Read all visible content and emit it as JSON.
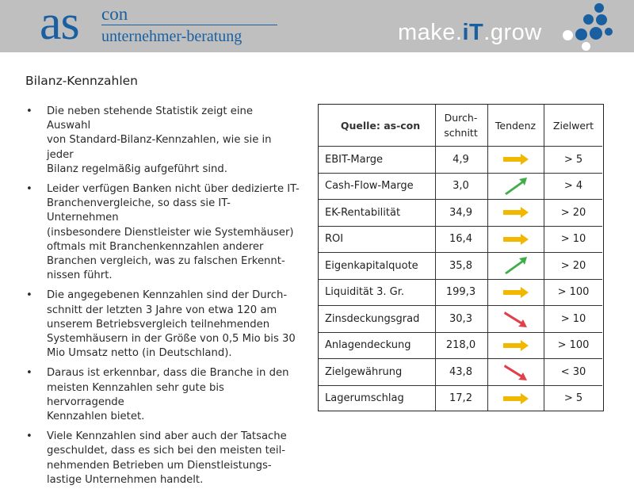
{
  "header": {
    "logo_as": "as",
    "logo_con": "con",
    "logo_sub": "unternehmer-beratung",
    "slogan_make": "make.",
    "slogan_it": "iT",
    "slogan_grow": ".grow",
    "colors": {
      "band": "#bfbfbf",
      "brand_blue": "#1a5fa0"
    }
  },
  "page": {
    "title": "Bilanz-Kennzahlen",
    "bullet_symbol": "•",
    "bullets": [
      {
        "lines": [
          "Die neben stehende Statistik zeigt eine Auswahl",
          "von Standard-Bilanz-Kennzahlen, wie sie in jeder",
          "Bilanz regelmäßig aufgeführt sind."
        ]
      },
      {
        "lines": [
          "Leider verfügen Banken nicht über dedizierte IT-",
          "Branchenvergleiche, so dass sie IT-Unternehmen",
          "(insbesondere Dienstleister wie Systemhäuser)",
          "oftmals mit Branchenkennzahlen anderer",
          "Branchen vergleich, was zu falschen Erkennt-",
          "nissen führt."
        ]
      },
      {
        "lines": [
          "Die angegebenen Kennzahlen sind der Durch-",
          "schnitt der letzten 3 Jahre von etwa 120 am",
          "unserem Betriebsvergleich teilnehmenden",
          "Systemhäusern in der Größe von 0,5 Mio bis 30",
          "Mio Umsatz netto (in Deutschland)."
        ]
      },
      {
        "lines": [
          "Daraus ist erkennbar, dass die Branche in den",
          "meisten Kennzahlen sehr gute bis hervorragende",
          "Kennzahlen bietet."
        ]
      },
      {
        "lines": [
          "Viele Kennzahlen sind aber auch der Tatsache",
          "geschuldet, dass es sich bei den meisten teil-",
          "nehmenden Betrieben um Dienstleistungs-",
          "lastige Unternehmen handelt."
        ]
      }
    ]
  },
  "table": {
    "source": "Quelle: as-con",
    "col_avg_line1": "Durch-",
    "col_avg_line2": "schnitt",
    "col_trend": "Tendenz",
    "col_target": "Zielwert",
    "trend_colors": {
      "flat": "#f2b800",
      "up": "#3fae49",
      "down": "#e0404a"
    },
    "rows": [
      {
        "name": "EBIT-Marge",
        "avg": "4,9",
        "trend": "flat",
        "target": "> 5"
      },
      {
        "name": "Cash-Flow-Marge",
        "avg": "3,0",
        "trend": "up",
        "target": "> 4"
      },
      {
        "name": "EK-Rentabilität",
        "avg": "34,9",
        "trend": "flat",
        "target": "> 20"
      },
      {
        "name": "ROI",
        "avg": "16,4",
        "trend": "flat",
        "target": "> 10"
      },
      {
        "name": "Eigenkapitalquote",
        "avg": "35,8",
        "trend": "up",
        "target": "> 20"
      },
      {
        "name": "Liquidität 3. Gr.",
        "avg": "199,3",
        "trend": "flat",
        "target": "> 100"
      },
      {
        "name": "Zinsdeckungsgrad",
        "avg": "30,3",
        "trend": "down",
        "target": "> 10"
      },
      {
        "name": "Anlagendeckung",
        "avg": "218,0",
        "trend": "flat",
        "target": "> 100"
      },
      {
        "name": "Zielgewährung",
        "avg": "43,8",
        "trend": "down",
        "target": "< 30"
      },
      {
        "name": "Lagerumschlag",
        "avg": "17,2",
        "trend": "flat",
        "target": "> 5"
      }
    ]
  }
}
